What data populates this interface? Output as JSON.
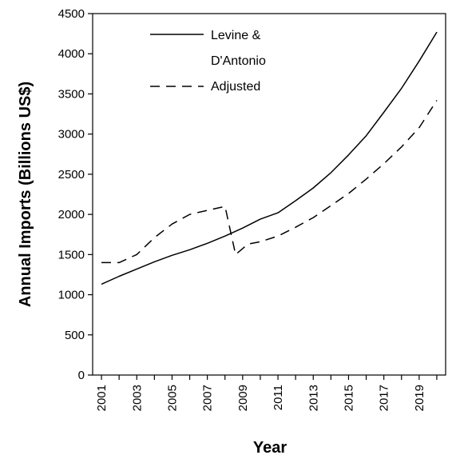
{
  "chart_data": {
    "type": "line",
    "xlabel": "Year",
    "ylabel": "Annual Imports (Billions US$)",
    "xlim": [
      2000.5,
      2020.5
    ],
    "ylim": [
      0,
      4500
    ],
    "yticks": [
      0,
      500,
      1000,
      1500,
      2000,
      2500,
      3000,
      3500,
      4000,
      4500
    ],
    "xtick_labels": [
      "2001",
      "2003",
      "2005",
      "2007",
      "2009",
      "2011",
      "2013",
      "2015",
      "2017",
      "2019"
    ],
    "legend_position": "top-left",
    "grid": false,
    "series": [
      {
        "name": "Levine & D'Antonio",
        "name_line1": "Levine &",
        "name_line2": "D'Antonio",
        "style": "solid",
        "color": "#000000",
        "x": [
          2001,
          2002,
          2003,
          2004,
          2005,
          2006,
          2007,
          2008,
          2009,
          2010,
          2011,
          2012,
          2013,
          2014,
          2015,
          2016,
          2017,
          2018,
          2019,
          2020
        ],
        "values": [
          1130,
          1230,
          1320,
          1410,
          1490,
          1560,
          1640,
          1730,
          1830,
          1940,
          2020,
          2170,
          2330,
          2520,
          2740,
          2980,
          3270,
          3570,
          3910,
          4270
        ]
      },
      {
        "name": "Adjusted",
        "style": "dashed",
        "color": "#000000",
        "x": [
          2001,
          2002,
          2003,
          2004,
          2005,
          2006,
          2007,
          2008,
          2008.6,
          2009.3,
          2010,
          2011,
          2012,
          2013,
          2014,
          2015,
          2016,
          2017,
          2018,
          2019,
          2020
        ],
        "values": [
          1400,
          1400,
          1500,
          1710,
          1880,
          2000,
          2050,
          2100,
          1500,
          1630,
          1660,
          1730,
          1840,
          1960,
          2110,
          2260,
          2440,
          2630,
          2840,
          3080,
          3420
        ]
      }
    ]
  }
}
